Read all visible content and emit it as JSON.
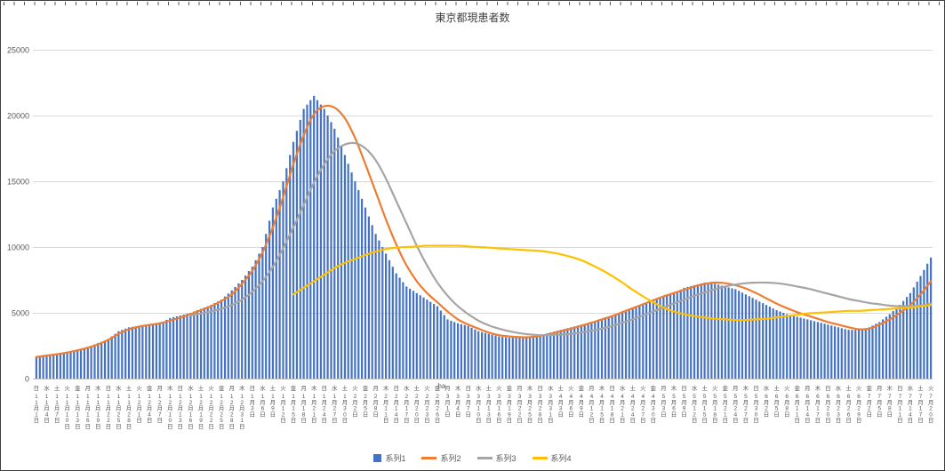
{
  "title": "東京都現患者数",
  "annotation": "ha",
  "y_axis": {
    "min": 0,
    "max": 25000,
    "step": 5000,
    "tick_labels": [
      "0",
      "5000",
      "10000",
      "15000",
      "20000",
      "25000"
    ]
  },
  "colors": {
    "grid": "#d9d9d9",
    "zero_line": "#bfbfbf",
    "axis_text": "#595959",
    "tick": "#595959",
    "border": "#404040",
    "background": "#ffffff"
  },
  "chart_data": {
    "type": "bar",
    "subtype": "combo-bar-and-lines",
    "title": "東京都現患者数",
    "xlabel": "",
    "ylabel": "",
    "ylim": [
      0,
      25000
    ],
    "grid": true,
    "legend_position": "bottom",
    "sample_interval_days": 3,
    "categories": [
      "11月1日",
      "11月4日",
      "11月7日",
      "11月10日",
      "11月13日",
      "11月16日",
      "11月19日",
      "11月22日",
      "11月25日",
      "11月28日",
      "12月1日",
      "12月4日",
      "12月7日",
      "12月10日",
      "12月13日",
      "12月16日",
      "12月19日",
      "12月22日",
      "12月25日",
      "12月28日",
      "12月31日",
      "1月3日",
      "1月6日",
      "1月9日",
      "1月12日",
      "1月15日",
      "1月18日",
      "1月21日",
      "1月24日",
      "1月27日",
      "1月30日",
      "2月2日",
      "2月5日",
      "2月8日",
      "2月11日",
      "2月14日",
      "2月17日",
      "2月20日",
      "2月23日",
      "2月26日",
      "3月1日",
      "3月4日",
      "3月7日",
      "3月10日",
      "3月13日",
      "3月16日",
      "3月19日",
      "3月22日",
      "3月25日",
      "3月28日",
      "3月31日",
      "4月3日",
      "4月6日",
      "4月9日",
      "4月12日",
      "4月15日",
      "4月18日",
      "4月21日",
      "4月24日",
      "4月27日",
      "4月30日",
      "5月3日",
      "5月6日",
      "5月9日",
      "5月12日",
      "5月15日",
      "5月18日",
      "5月21日",
      "5月24日",
      "5月27日",
      "5月30日",
      "6月2日",
      "6月5日",
      "6月8日",
      "6月11日",
      "6月14日",
      "6月17日",
      "6月20日",
      "6月23日",
      "6月26日",
      "6月29日",
      "7月2日",
      "7月5日",
      "7月8日",
      "7月11日",
      "7月14日",
      "7月17日",
      "7月20日"
    ],
    "weekdays": [
      "日",
      "水",
      "土",
      "火",
      "金",
      "月",
      "木",
      "日",
      "水",
      "土",
      "火",
      "金",
      "月",
      "木",
      "日",
      "水",
      "土",
      "火",
      "金",
      "月",
      "木",
      "日",
      "水",
      "土",
      "火",
      "金",
      "月",
      "木",
      "日",
      "水",
      "土",
      "火",
      "金",
      "月",
      "木",
      "日",
      "水",
      "土",
      "火",
      "金",
      "月",
      "木",
      "日",
      "水",
      "土",
      "火",
      "金",
      "月",
      "木",
      "日",
      "水",
      "土",
      "火",
      "金",
      "月",
      "木",
      "日",
      "水",
      "土",
      "火",
      "金",
      "月",
      "木",
      "日",
      "水",
      "土",
      "火",
      "金",
      "月",
      "木",
      "日",
      "水",
      "土",
      "火",
      "金",
      "月",
      "木",
      "日",
      "水",
      "土",
      "火",
      "金",
      "月",
      "木",
      "日",
      "水",
      "土",
      "火"
    ],
    "series": [
      {
        "name": "系列1",
        "kind": "bar",
        "color": "#4472c4",
        "values": [
          1700,
          1800,
          1900,
          2000,
          2200,
          2400,
          2700,
          3000,
          3600,
          3900,
          4000,
          4100,
          4200,
          4600,
          4800,
          5000,
          5300,
          5600,
          6000,
          6700,
          7500,
          8500,
          10000,
          13000,
          15000,
          18000,
          20500,
          21500,
          20500,
          19000,
          17000,
          15000,
          13000,
          11000,
          9500,
          8000,
          7000,
          6500,
          6000,
          5500,
          4500,
          4200,
          4000,
          3600,
          3400,
          3200,
          3100,
          3100,
          3200,
          3300,
          3500,
          3700,
          3900,
          4100,
          4300,
          4500,
          4800,
          5100,
          5400,
          5700,
          6000,
          6300,
          6500,
          6900,
          7100,
          7300,
          7200,
          7000,
          6800,
          6400,
          6000,
          5600,
          5200,
          4900,
          4700,
          4500,
          4300,
          4100,
          3900,
          3700,
          3700,
          3900,
          4300,
          4900,
          5600,
          6500,
          7800,
          9200
        ]
      },
      {
        "name": "系列2",
        "kind": "line",
        "color": "#ed7d31",
        "values": [
          1650,
          1750,
          1850,
          1980,
          2150,
          2350,
          2600,
          2950,
          3400,
          3750,
          3950,
          4080,
          4200,
          4400,
          4650,
          4900,
          5200,
          5500,
          5900,
          6400,
          7200,
          8200,
          9600,
          11500,
          13800,
          16300,
          18500,
          20100,
          20700,
          20600,
          19800,
          18300,
          16300,
          14200,
          12100,
          10200,
          8600,
          7400,
          6500,
          5800,
          5100,
          4500,
          4100,
          3800,
          3500,
          3300,
          3200,
          3150,
          3150,
          3250,
          3400,
          3600,
          3800,
          4000,
          4250,
          4500,
          4750,
          5050,
          5350,
          5650,
          5950,
          6250,
          6500,
          6750,
          7000,
          7200,
          7300,
          7250,
          7100,
          6850,
          6500,
          6100,
          5700,
          5350,
          5050,
          4800,
          4550,
          4300,
          4100,
          3900,
          3750,
          3800,
          4100,
          4500,
          5000,
          5600,
          6400,
          7400
        ]
      },
      {
        "name": "系列3",
        "kind": "line",
        "color": "#a5a5a5",
        "values": [
          null,
          null,
          null,
          null,
          null,
          null,
          null,
          null,
          null,
          null,
          null,
          null,
          null,
          null,
          null,
          4800,
          4950,
          5100,
          5300,
          5600,
          6000,
          6600,
          7400,
          8500,
          9900,
          11500,
          13200,
          14900,
          16300,
          17300,
          17800,
          17900,
          17500,
          16600,
          15200,
          13500,
          11800,
          10100,
          8600,
          7300,
          6300,
          5500,
          4900,
          4400,
          4050,
          3800,
          3600,
          3450,
          3350,
          3300,
          3300,
          3350,
          3400,
          3500,
          3650,
          3800,
          4000,
          4250,
          4500,
          4800,
          5100,
          5400,
          5700,
          6000,
          6300,
          6550,
          6800,
          7000,
          7150,
          7250,
          7300,
          7300,
          7250,
          7150,
          7000,
          6850,
          6650,
          6450,
          6250,
          6050,
          5900,
          5750,
          5650,
          5550,
          5500,
          5500,
          5550,
          5700
        ]
      },
      {
        "name": "系列4",
        "kind": "line",
        "color": "#ffc000",
        "values": [
          null,
          null,
          null,
          null,
          null,
          null,
          null,
          null,
          null,
          null,
          null,
          null,
          null,
          null,
          null,
          null,
          null,
          null,
          null,
          null,
          null,
          null,
          null,
          null,
          null,
          6400,
          6900,
          7400,
          7900,
          8400,
          8800,
          9100,
          9400,
          9650,
          9850,
          9950,
          10000,
          10050,
          10100,
          10100,
          10100,
          10100,
          10050,
          10000,
          9950,
          9900,
          9850,
          9800,
          9750,
          9700,
          9600,
          9450,
          9250,
          9000,
          8650,
          8250,
          7800,
          7300,
          6750,
          6250,
          5800,
          5400,
          5100,
          4900,
          4750,
          4650,
          4550,
          4500,
          4450,
          4450,
          4500,
          4550,
          4650,
          4750,
          4850,
          4950,
          5000,
          5050,
          5100,
          5150,
          5150,
          5200,
          5250,
          5300,
          5350,
          5400,
          5500,
          5600
        ]
      }
    ]
  }
}
